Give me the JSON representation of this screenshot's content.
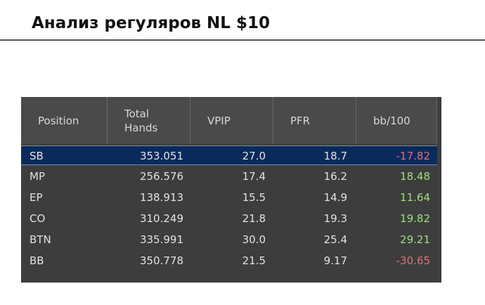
{
  "header": {
    "title": "Анализ регуляров NL $10"
  },
  "table": {
    "columns": [
      "Position",
      "Total Hands",
      "VPIP",
      "PFR",
      "bb/100"
    ],
    "rows": [
      [
        "SB",
        "353.051",
        "27.0",
        "18.7",
        "-17.82"
      ],
      [
        "MP",
        "256.576",
        "17.4",
        "16.2",
        "18.48"
      ],
      [
        "EP",
        "138.913",
        "15.5",
        "14.9",
        "11.64"
      ],
      [
        "CO",
        "310.249",
        "21.8",
        "19.3",
        "19.82"
      ],
      [
        "BTN",
        "335.991",
        "30.0",
        "25.4",
        "29.21"
      ],
      [
        "BB",
        "350.778",
        "21.5",
        "9.17",
        "-30.65"
      ]
    ]
  }
}
